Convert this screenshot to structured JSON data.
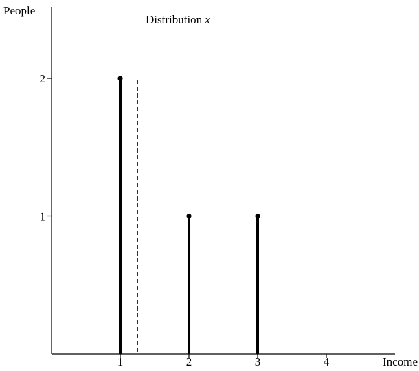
{
  "chart_data": {
    "type": "stem",
    "title_text": "Distribution ",
    "title_var": "x",
    "xlabel": "Income",
    "ylabel": "People",
    "x_ticks": [
      1,
      2,
      3,
      4
    ],
    "y_ticks": [
      1,
      2
    ],
    "xlim": [
      0,
      4.0
    ],
    "ylim": [
      0,
      2.5
    ],
    "points": [
      {
        "x": 1,
        "y": 2
      },
      {
        "x": 2,
        "y": 1
      },
      {
        "x": 3,
        "y": 1
      }
    ],
    "reference_line": {
      "x": 1.25,
      "style": "dashed",
      "y_top": 2
    },
    "colors": {
      "stroke": "#000000"
    }
  }
}
